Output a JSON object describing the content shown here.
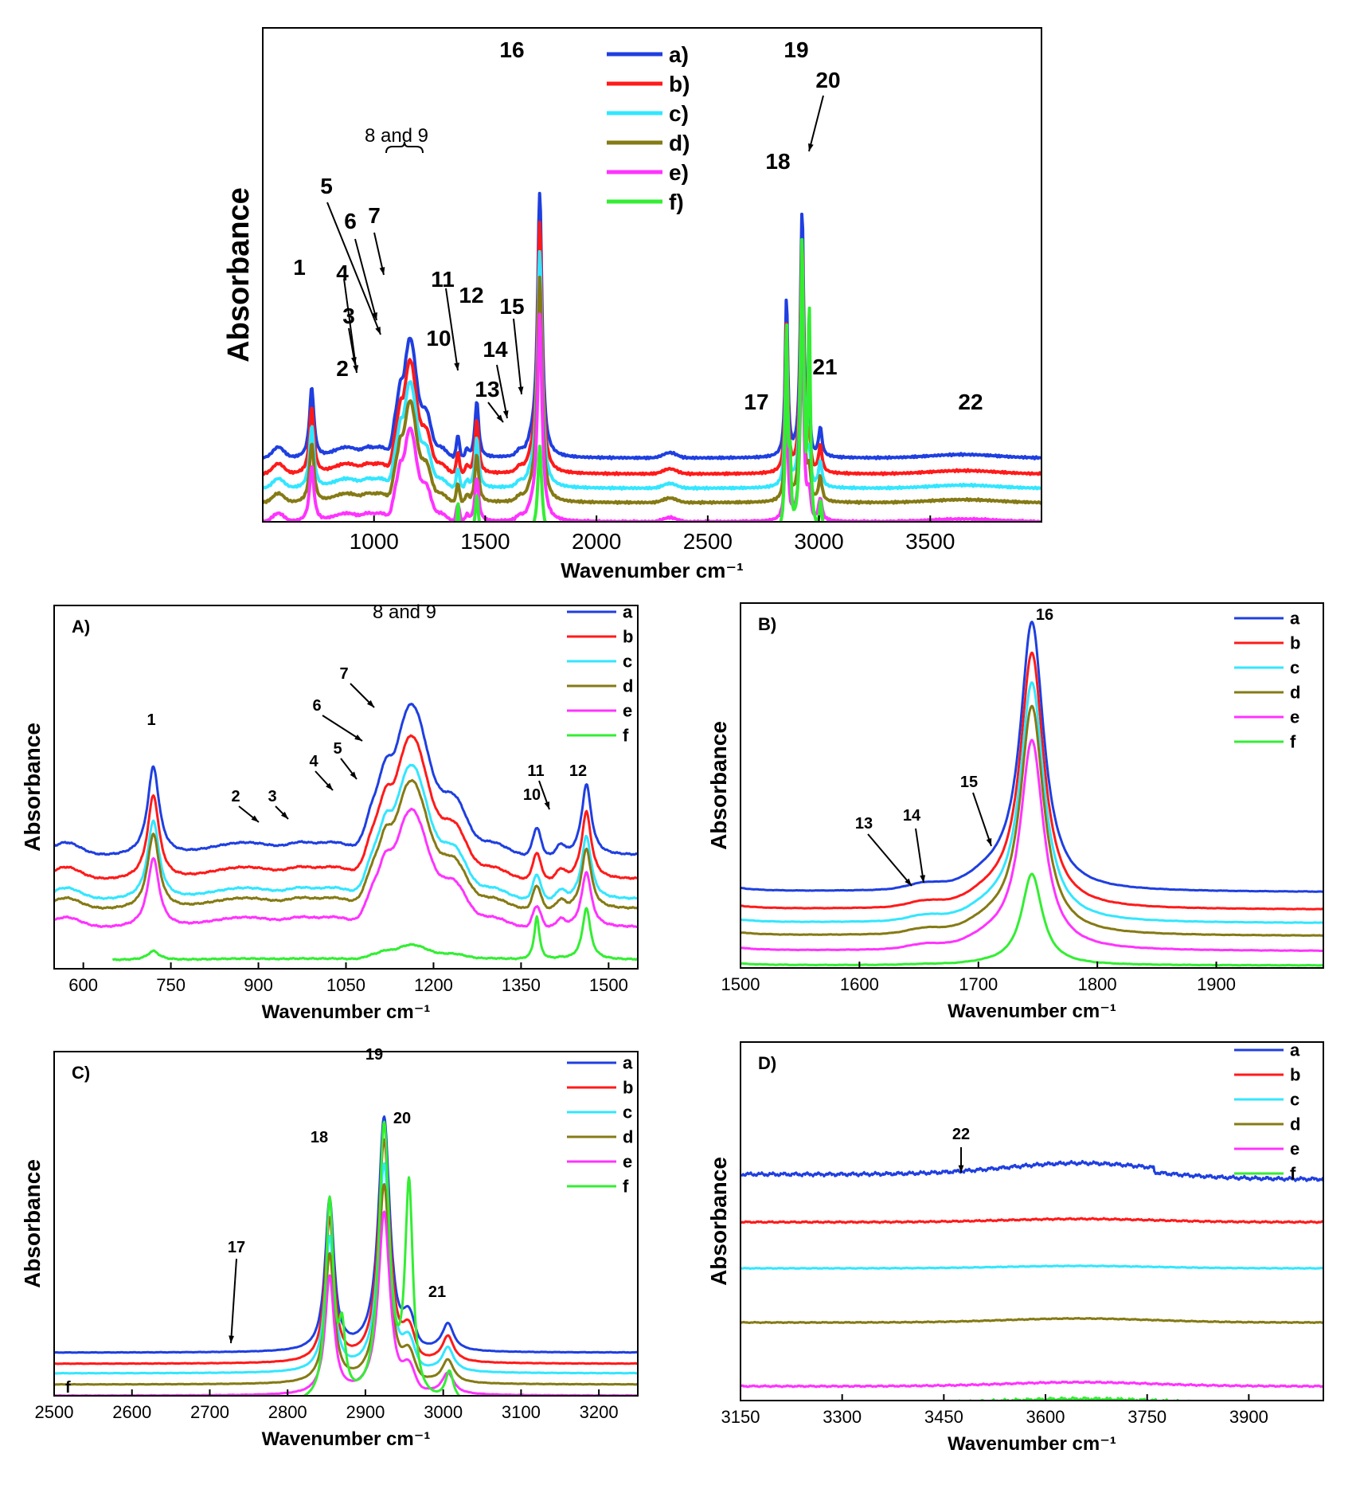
{
  "figure": {
    "colors": {
      "a": "#1f3fe0",
      "b": "#ff1a1a",
      "c": "#33e6ff",
      "d": "#857a14",
      "e": "#ff33ff",
      "f": "#33ee33"
    }
  },
  "chart_data": [
    {
      "id": "main",
      "type": "line",
      "title": "",
      "xlabel": "Wavenumber cm⁻¹",
      "ylabel": "Absorbance",
      "xlim": [
        500,
        4000
      ],
      "ylim": [
        0,
        100
      ],
      "xticks": [
        1000,
        1500,
        2000,
        2500,
        3000,
        3500
      ],
      "legend": [
        "a)",
        "b)",
        "c)",
        "d)",
        "e)",
        "f)"
      ],
      "legend_position": "top-center",
      "series": [
        {
          "name": "a",
          "offset": 17,
          "scale": 1.0
        },
        {
          "name": "b",
          "offset": 14,
          "scale": 0.95
        },
        {
          "name": "c",
          "offset": 11,
          "scale": 0.89
        },
        {
          "name": "d",
          "offset": 8,
          "scale": 0.85
        },
        {
          "name": "e",
          "offset": 5,
          "scale": 0.78
        },
        {
          "name": "f",
          "offset": 2,
          "scale": 0.1
        }
      ],
      "annotations": [
        "1",
        "2",
        "3",
        "4",
        "5",
        "6",
        "7",
        "8 and 9",
        "10",
        "11",
        "12",
        "13",
        "14",
        "15",
        "16",
        "17",
        "18",
        "19",
        "20",
        "21",
        "22"
      ]
    },
    {
      "id": "A",
      "type": "line",
      "panel_label": "A)",
      "xlabel": "Wavenumber cm⁻¹",
      "ylabel": "Absorbance",
      "xlim": [
        550,
        1550
      ],
      "ylim": [
        0,
        100
      ],
      "xticks": [
        600,
        750,
        900,
        1050,
        1200,
        1350,
        1500
      ],
      "legend": [
        "a",
        "b",
        "c",
        "d",
        "e",
        "f"
      ],
      "legend_position": "top-right",
      "annotations": [
        "1",
        "2",
        "3",
        "4",
        "5",
        "6",
        "7",
        "8 and 9",
        "10",
        "11",
        "12"
      ]
    },
    {
      "id": "B",
      "type": "line",
      "panel_label": "B)",
      "xlabel": "Wavenumber cm⁻¹",
      "ylabel": "Absorbance",
      "xlim": [
        1500,
        1990
      ],
      "ylim": [
        0,
        100
      ],
      "xticks": [
        1500,
        1600,
        1700,
        1800,
        1900
      ],
      "legend": [
        "a",
        "b",
        "c",
        "d",
        "e",
        "f"
      ],
      "legend_position": "top-right",
      "annotations": [
        "13",
        "14",
        "15",
        "16"
      ]
    },
    {
      "id": "C",
      "type": "line",
      "panel_label": "C)",
      "xlabel": "Wavenumber cm⁻¹",
      "ylabel": "Absorbance",
      "xlim": [
        2500,
        3250
      ],
      "ylim": [
        0,
        100
      ],
      "xticks": [
        2500,
        2600,
        2700,
        2800,
        2900,
        3000,
        3100,
        3200
      ],
      "legend": [
        "a",
        "b",
        "c",
        "d",
        "e",
        "f"
      ],
      "legend_position": "top-right",
      "annotations": [
        "17",
        "18",
        "19",
        "20",
        "21",
        "f"
      ]
    },
    {
      "id": "D",
      "type": "line",
      "panel_label": "D)",
      "xlabel": "Wavenumber cm⁻¹",
      "ylabel": "Absorbance",
      "xlim": [
        3150,
        4010
      ],
      "ylim": [
        0,
        100
      ],
      "xticks": [
        3150,
        3300,
        3450,
        3600,
        3750,
        3900
      ],
      "legend": [
        "a",
        "b",
        "c",
        "d",
        "e",
        "f"
      ],
      "legend_position": "top-right",
      "annotations": [
        "22"
      ]
    }
  ]
}
